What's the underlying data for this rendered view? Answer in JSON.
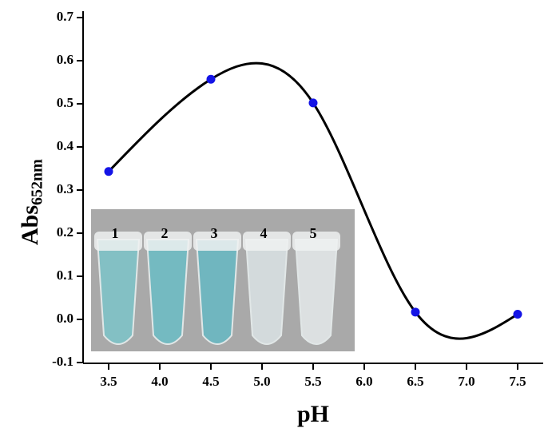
{
  "chart_data": {
    "type": "scatter-spline",
    "x_label": "pH",
    "y_label": {
      "main": "Abs",
      "sub": "652nm"
    },
    "x": [
      3.5,
      4.5,
      5.5,
      6.5,
      7.5
    ],
    "values": [
      0.343,
      0.557,
      0.502,
      0.017,
      0.012
    ],
    "color": "#1414e6",
    "line_color": "#000000",
    "xlim": [
      3.25,
      7.75
    ],
    "ylim": [
      -0.1,
      0.7
    ],
    "xticks": [
      3.5,
      {
        "value": 4,
        "label": "4.0"
      },
      4.5,
      {
        "value": 5,
        "label": "5.0"
      },
      5.5,
      {
        "value": 6,
        "label": "6.0"
      },
      6.5,
      {
        "value": 7,
        "label": "7.0"
      },
      7.5
    ],
    "yticks": [
      -0.1,
      {
        "value": 0,
        "label": "0.0"
      },
      0.1,
      0.2,
      0.3,
      0.4,
      0.5,
      0.6,
      0.7
    ],
    "inset_labels": [
      "1",
      "2",
      "3",
      "4",
      "5"
    ]
  }
}
